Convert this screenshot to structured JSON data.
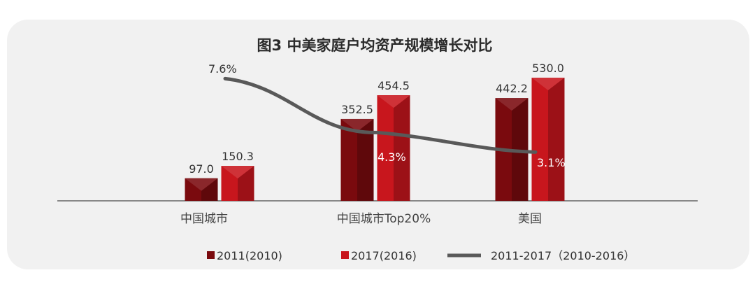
{
  "chart_data": {
    "type": "bar",
    "title": "图3 中美家庭户均资产规模增长对比",
    "categories": [
      "中国城市",
      "中国城市Top20%",
      "美国"
    ],
    "series": [
      {
        "name": "2011(2010)",
        "kind": "bar",
        "color": "#7a0a0e",
        "values": [
          97.0,
          352.5,
          442.2
        ],
        "labels": [
          "97.0",
          "352.5",
          "442.2"
        ]
      },
      {
        "name": "2017(2016)",
        "kind": "bar",
        "color": "#c8161d",
        "values": [
          150.3,
          454.5,
          530.0
        ],
        "labels": [
          "150.3",
          "454.5",
          "530.0"
        ]
      },
      {
        "name": "2011-2017（2010-2016）",
        "kind": "line",
        "color": "#595959",
        "values": [
          7.6,
          4.3,
          3.1
        ],
        "labels": [
          "7.6%",
          "4.3%",
          "3.1%"
        ]
      }
    ],
    "legend_position": "bottom",
    "grid": false
  }
}
